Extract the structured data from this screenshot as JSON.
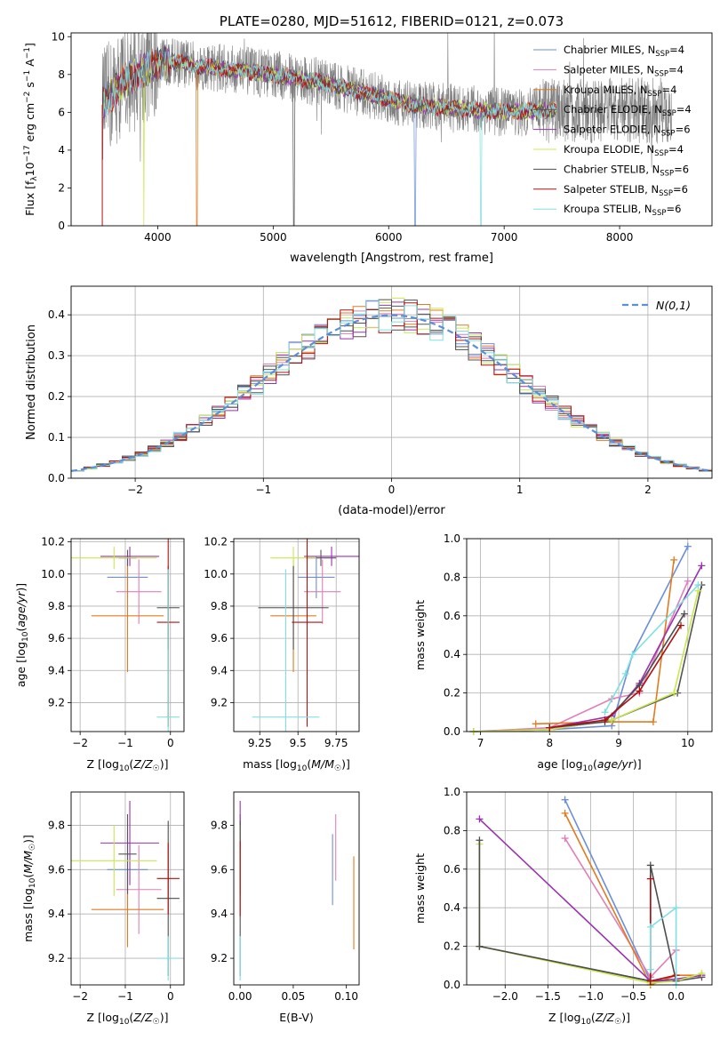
{
  "palette": {
    "chabrier_miles": "#6a8fd8",
    "salpeter_miles": "#e07fb8",
    "kroupa_miles": "#e07b20",
    "chabrier_elodie": "#555555",
    "salpeter_elodie": "#9b30b0",
    "kroupa_elodie": "#c8e850",
    "chabrier_stelib": "#4d4d4d",
    "salpeter_stelib": "#b01010",
    "kroupa_stelib": "#80e0e0",
    "data": "#808080",
    "normal": "#5b8fd6",
    "grid": "#b0b0b0"
  },
  "chart_data": [
    {
      "id": "spectrum",
      "type": "line",
      "title": "PLATE=0280, MJD=51612, FIBERID=0121, z=0.073",
      "xlabel": "wavelength [Angstrom, rest frame]",
      "ylabel": "Flux [f_λ10^-17 erg cm^-2 s^-1 A^-1]",
      "xlim": [
        3250,
        8800
      ],
      "ylim": [
        0,
        10.2
      ],
      "xticks": [
        4000,
        5000,
        6000,
        7000,
        8000
      ],
      "yticks": [
        0,
        2,
        4,
        6,
        8,
        10
      ],
      "grid": false,
      "legend_position": "top-right",
      "legend": [
        {
          "label": "Chabrier MILES, N",
          "sub": "SSP",
          "suffix": "=4",
          "color_key": "chabrier_miles"
        },
        {
          "label": "Salpeter MILES, N",
          "sub": "SSP",
          "suffix": "=4",
          "color_key": "salpeter_miles"
        },
        {
          "label": "Kroupa MILES, N",
          "sub": "SSP",
          "suffix": "=4",
          "color_key": "kroupa_miles"
        },
        {
          "label": "Chabrier ELODIE, N",
          "sub": "SSP",
          "suffix": "=4",
          "color_key": "chabrier_elodie"
        },
        {
          "label": "Salpeter ELODIE, N",
          "sub": "SSP",
          "suffix": "=6",
          "color_key": "salpeter_elodie"
        },
        {
          "label": "Kroupa ELODIE, N",
          "sub": "SSP",
          "suffix": "=4",
          "color_key": "kroupa_elodie"
        },
        {
          "label": "Chabrier STELIB, N",
          "sub": "SSP",
          "suffix": "=6",
          "color_key": "chabrier_stelib"
        },
        {
          "label": "Salpeter STELIB, N",
          "sub": "SSP",
          "suffix": "=6",
          "color_key": "salpeter_stelib"
        },
        {
          "label": "Kroupa STELIB, N",
          "sub": "SSP",
          "suffix": "=6",
          "color_key": "kroupa_stelib"
        }
      ],
      "wavelength_range": [
        3520,
        7450
      ],
      "continuum": [
        [
          3520,
          6.4
        ],
        [
          3700,
          7.6
        ],
        [
          3900,
          8.3
        ],
        [
          4100,
          8.7
        ],
        [
          4300,
          8.5
        ],
        [
          4600,
          8.3
        ],
        [
          5000,
          8.0
        ],
        [
          5400,
          7.6
        ],
        [
          5800,
          7.0
        ],
        [
          6200,
          6.4
        ],
        [
          6600,
          6.2
        ],
        [
          7000,
          6.0
        ],
        [
          7400,
          6.1
        ]
      ],
      "data_extends_to": 8450
    },
    {
      "id": "residuals",
      "type": "histogram",
      "xlabel": "(data-model)/error",
      "ylabel": "Normed distribution",
      "xlim": [
        -2.5,
        2.5
      ],
      "ylim": [
        0,
        0.47
      ],
      "xticks": [
        -2,
        -1,
        0,
        1,
        2
      ],
      "yticks": [
        0,
        0.1,
        0.2,
        0.3,
        0.4
      ],
      "grid": true,
      "bin_width": 0.1,
      "legend_position": "top-right",
      "legend": [
        {
          "label": "N(0,1)",
          "style": "dashed",
          "color_key": "normal"
        }
      ]
    },
    {
      "id": "age_vs_Z",
      "type": "errorbar",
      "xlabel": "Z [log10(Z/Z☉)]",
      "ylabel": "age [log10(age/yr)]",
      "xlim": [
        -2.2,
        0.3
      ],
      "ylim": [
        9.02,
        10.22
      ],
      "xticks": [
        -2,
        -1,
        0
      ],
      "yticks": [
        9.2,
        9.4,
        9.6,
        9.8,
        10.0,
        10.2
      ],
      "grid": true,
      "points": [
        {
          "c": "chabrier_miles",
          "x": -0.95,
          "xe": 0.45,
          "y": 9.98,
          "ye": 0.13
        },
        {
          "c": "salpeter_miles",
          "x": -0.7,
          "xe": 0.5,
          "y": 9.89,
          "ye": 0.2
        },
        {
          "c": "kroupa_miles",
          "x": -0.95,
          "xe": 0.8,
          "y": 9.74,
          "ye": 0.35
        },
        {
          "c": "chabrier_elodie",
          "x": -0.95,
          "xe": 0.2,
          "y": 10.1,
          "ye": 0.05
        },
        {
          "c": "salpeter_elodie",
          "x": -0.9,
          "xe": 0.65,
          "y": 10.11,
          "ye": 0.06
        },
        {
          "c": "kroupa_elodie",
          "x": -1.25,
          "xe": 0.95,
          "y": 10.1,
          "ye": 0.07
        },
        {
          "c": "chabrier_stelib",
          "x": -0.05,
          "xe": 0.25,
          "y": 9.79,
          "ye": 0.26
        },
        {
          "c": "salpeter_stelib",
          "x": -0.05,
          "xe": 0.25,
          "y": 9.7,
          "ye": 0.65
        },
        {
          "c": "kroupa_stelib",
          "x": -0.05,
          "xe": 0.25,
          "y": 9.11,
          "ye": 0.92
        }
      ]
    },
    {
      "id": "age_vs_mass",
      "type": "errorbar",
      "xlabel": "mass [log10(M/M☉)]",
      "ylabel": "",
      "xlim": [
        9.08,
        9.9
      ],
      "ylim": [
        9.02,
        10.22
      ],
      "xticks": [
        9.25,
        9.5,
        9.75
      ],
      "yticks": [
        9.2,
        9.4,
        9.6,
        9.8,
        10.0,
        10.2
      ],
      "grid": true,
      "points": [
        {
          "c": "chabrier_miles",
          "x": 9.62,
          "xe": 0.12,
          "y": 9.98,
          "ye": 0.13
        },
        {
          "c": "salpeter_miles",
          "x": 9.66,
          "xe": 0.12,
          "y": 9.89,
          "ye": 0.2
        },
        {
          "c": "kroupa_miles",
          "x": 9.47,
          "xe": 0.15,
          "y": 9.74,
          "ye": 0.35
        },
        {
          "c": "chabrier_elodie",
          "x": 9.65,
          "xe": 0.1,
          "y": 10.1,
          "ye": 0.05
        },
        {
          "c": "salpeter_elodie",
          "x": 9.72,
          "xe": 0.18,
          "y": 10.11,
          "ye": 0.06
        },
        {
          "c": "kroupa_elodie",
          "x": 9.47,
          "xe": 0.15,
          "y": 10.1,
          "ye": 0.07
        },
        {
          "c": "chabrier_stelib",
          "x": 9.47,
          "xe": 0.23,
          "y": 9.79,
          "ye": 0.26
        },
        {
          "c": "salpeter_stelib",
          "x": 9.56,
          "xe": 0.1,
          "y": 9.7,
          "ye": 0.65
        },
        {
          "c": "kroupa_stelib",
          "x": 9.42,
          "xe": 0.22,
          "y": 9.11,
          "ye": 0.92
        }
      ]
    },
    {
      "id": "mass_weight_vs_age",
      "type": "line",
      "xlabel": "age [log10(age/yr)]",
      "ylabel": "mass weight",
      "xlim": [
        6.8,
        10.35
      ],
      "ylim": [
        0,
        1.0
      ],
      "xticks": [
        7,
        8,
        9,
        10
      ],
      "yticks": [
        0.0,
        0.2,
        0.4,
        0.6,
        0.8,
        1.0
      ],
      "grid": true,
      "series": [
        {
          "c": "chabrier_miles",
          "points": [
            [
              8.0,
              0.01
            ],
            [
              8.9,
              0.03
            ],
            [
              9.2,
              0.4
            ],
            [
              10.0,
              0.96
            ]
          ]
        },
        {
          "c": "salpeter_miles",
          "points": [
            [
              6.9,
              0.0
            ],
            [
              8.0,
              0.02
            ],
            [
              8.9,
              0.17
            ],
            [
              9.3,
              0.2
            ],
            [
              10.0,
              0.78
            ]
          ]
        },
        {
          "c": "kroupa_miles",
          "points": [
            [
              7.8,
              0.04
            ],
            [
              8.9,
              0.05
            ],
            [
              9.5,
              0.05
            ],
            [
              9.8,
              0.89
            ]
          ]
        },
        {
          "c": "chabrier_elodie",
          "points": [
            [
              6.9,
              0.0
            ],
            [
              8.0,
              0.01
            ],
            [
              8.9,
              0.06
            ],
            [
              9.85,
              0.2
            ],
            [
              10.2,
              0.76
            ]
          ]
        },
        {
          "c": "salpeter_elodie",
          "points": [
            [
              8.0,
              0.02
            ],
            [
              8.9,
              0.08
            ],
            [
              9.3,
              0.25
            ],
            [
              10.2,
              0.86
            ]
          ]
        },
        {
          "c": "kroupa_elodie",
          "points": [
            [
              6.9,
              0.0
            ],
            [
              8.0,
              0.01
            ],
            [
              8.9,
              0.06
            ],
            [
              9.8,
              0.2
            ],
            [
              10.15,
              0.73
            ]
          ]
        },
        {
          "c": "chabrier_stelib",
          "points": [
            [
              8.0,
              0.02
            ],
            [
              8.8,
              0.05
            ],
            [
              9.3,
              0.24
            ],
            [
              9.95,
              0.61
            ]
          ]
        },
        {
          "c": "salpeter_stelib",
          "points": [
            [
              8.0,
              0.02
            ],
            [
              8.8,
              0.06
            ],
            [
              9.3,
              0.21
            ],
            [
              9.9,
              0.55
            ]
          ]
        },
        {
          "c": "kroupa_stelib",
          "points": [
            [
              8.8,
              0.1
            ],
            [
              9.1,
              0.3
            ],
            [
              9.2,
              0.4
            ],
            [
              10.15,
              0.76
            ]
          ]
        }
      ]
    },
    {
      "id": "mass_vs_Z",
      "type": "errorbar",
      "xlabel": "Z [log10(Z/Z☉)]",
      "ylabel": "mass [log10(M/M☉)]",
      "xlim": [
        -2.2,
        0.3
      ],
      "ylim": [
        9.08,
        9.95
      ],
      "xticks": [
        -2,
        -1,
        0
      ],
      "yticks": [
        9.2,
        9.4,
        9.6,
        9.8
      ],
      "grid": true,
      "points": [
        {
          "c": "chabrier_miles",
          "x": -0.95,
          "xe": 0.45,
          "y": 9.6,
          "ye": 0.17
        },
        {
          "c": "salpeter_miles",
          "x": -0.7,
          "xe": 0.5,
          "y": 9.51,
          "ye": 0.2
        },
        {
          "c": "kroupa_miles",
          "x": -0.95,
          "xe": 0.8,
          "y": 9.42,
          "ye": 0.17
        },
        {
          "c": "chabrier_elodie",
          "x": -0.95,
          "xe": 0.2,
          "y": 9.67,
          "ye": 0.18
        },
        {
          "c": "salpeter_elodie",
          "x": -0.9,
          "xe": 0.65,
          "y": 9.72,
          "ye": 0.19
        },
        {
          "c": "kroupa_elodie",
          "x": -1.25,
          "xe": 0.95,
          "y": 9.64,
          "ye": 0.16
        },
        {
          "c": "chabrier_stelib",
          "x": -0.05,
          "xe": 0.25,
          "y": 9.47,
          "ye": 0.35
        },
        {
          "c": "salpeter_stelib",
          "x": -0.05,
          "xe": 0.25,
          "y": 9.56,
          "ye": 0.16
        },
        {
          "c": "kroupa_stelib",
          "x": -0.05,
          "xe": 0.25,
          "y": 9.2,
          "ye": 0.1
        }
      ]
    },
    {
      "id": "mass_vs_ebv",
      "type": "errorbar",
      "xlabel": "E(B-V)",
      "ylabel": "",
      "xlim": [
        -0.006,
        0.112
      ],
      "ylim": [
        9.08,
        9.95
      ],
      "xticks": [
        0.0,
        0.05,
        0.1
      ],
      "xticklabels": [
        "0.00",
        "0.05",
        "0.10"
      ],
      "yticks": [
        9.2,
        9.4,
        9.6,
        9.8
      ],
      "grid": false,
      "points": [
        {
          "c": "chabrier_miles",
          "x": 0.087,
          "xe": 0,
          "y": 9.6,
          "ye": 0.16
        },
        {
          "c": "salpeter_miles",
          "x": 0.09,
          "xe": 0,
          "y": 9.7,
          "ye": 0.15
        },
        {
          "c": "kroupa_miles",
          "x": 0.107,
          "xe": 0,
          "y": 9.45,
          "ye": 0.21
        },
        {
          "c": "chabrier_elodie",
          "x": 0.0,
          "xe": 0,
          "y": 9.67,
          "ye": 0.18
        },
        {
          "c": "salpeter_elodie",
          "x": 0.0,
          "xe": 0,
          "y": 9.8,
          "ye": 0.11
        },
        {
          "c": "kroupa_elodie",
          "x": 0.0,
          "xe": 0,
          "y": 9.64,
          "ye": 0.16
        },
        {
          "c": "chabrier_stelib",
          "x": 0.0,
          "xe": 0,
          "y": 9.47,
          "ye": 0.35
        },
        {
          "c": "salpeter_stelib",
          "x": 0.0,
          "xe": 0,
          "y": 9.56,
          "ye": 0.17
        },
        {
          "c": "kroupa_stelib",
          "x": 0.0,
          "xe": 0,
          "y": 9.2,
          "ye": 0.1
        }
      ]
    },
    {
      "id": "mass_weight_vs_Z",
      "type": "line",
      "xlabel": "Z [log10(Z/Z☉)]",
      "ylabel": "mass weight",
      "xlim": [
        -2.45,
        0.42
      ],
      "ylim": [
        0,
        1.0
      ],
      "xticks": [
        -2.0,
        -1.5,
        -1.0,
        -0.5,
        0.0
      ],
      "xticklabels": [
        "−2.0",
        "−1.5",
        "−1.0",
        "−0.5",
        "0.0"
      ],
      "yticks": [
        0.0,
        0.2,
        0.4,
        0.6,
        0.8,
        1.0
      ],
      "grid": true,
      "series": [
        {
          "c": "chabrier_miles",
          "points": [
            [
              -1.3,
              0.96
            ],
            [
              -0.3,
              0.02
            ],
            [
              0.0,
              0.02
            ]
          ]
        },
        {
          "c": "salpeter_miles",
          "points": [
            [
              -1.3,
              0.76
            ],
            [
              -0.3,
              0.04
            ],
            [
              0.0,
              0.18
            ]
          ]
        },
        {
          "c": "kroupa_miles",
          "points": [
            [
              -1.3,
              0.89
            ],
            [
              -0.3,
              0.0
            ],
            [
              0.0,
              0.05
            ],
            [
              0.3,
              0.05
            ]
          ]
        },
        {
          "c": "chabrier_elodie",
          "points": [
            [
              -2.3,
              0.2
            ],
            [
              -0.3,
              0.02
            ],
            [
              0.0,
              0.02
            ],
            [
              0.3,
              0.04
            ]
          ]
        },
        {
          "c": "salpeter_elodie",
          "points": [
            [
              -2.3,
              0.86
            ],
            [
              -0.3,
              0.02
            ],
            [
              0.0,
              0.03
            ],
            [
              0.3,
              0.05
            ]
          ]
        },
        {
          "c": "kroupa_elodie",
          "points": [
            [
              -2.3,
              0.73
            ],
            [
              -2.3,
              0.2
            ],
            [
              -0.3,
              0.01
            ],
            [
              0.0,
              0.02
            ],
            [
              0.3,
              0.06
            ]
          ]
        },
        {
          "c": "chabrier_stelib",
          "points": [
            [
              -2.3,
              0.75
            ],
            [
              -2.3,
              0.2
            ],
            [
              -0.3,
              0.02
            ],
            [
              -0.3,
              0.62
            ],
            [
              0.0,
              0.02
            ]
          ]
        },
        {
          "c": "salpeter_stelib",
          "points": [
            [
              -0.3,
              0.55
            ],
            [
              -0.3,
              0.02
            ],
            [
              0.0,
              0.05
            ]
          ]
        },
        {
          "c": "kroupa_stelib",
          "points": [
            [
              -0.3,
              0.08
            ],
            [
              -0.3,
              0.3
            ],
            [
              0.0,
              0.4
            ],
            [
              0.0,
              0.0
            ]
          ]
        }
      ]
    }
  ]
}
